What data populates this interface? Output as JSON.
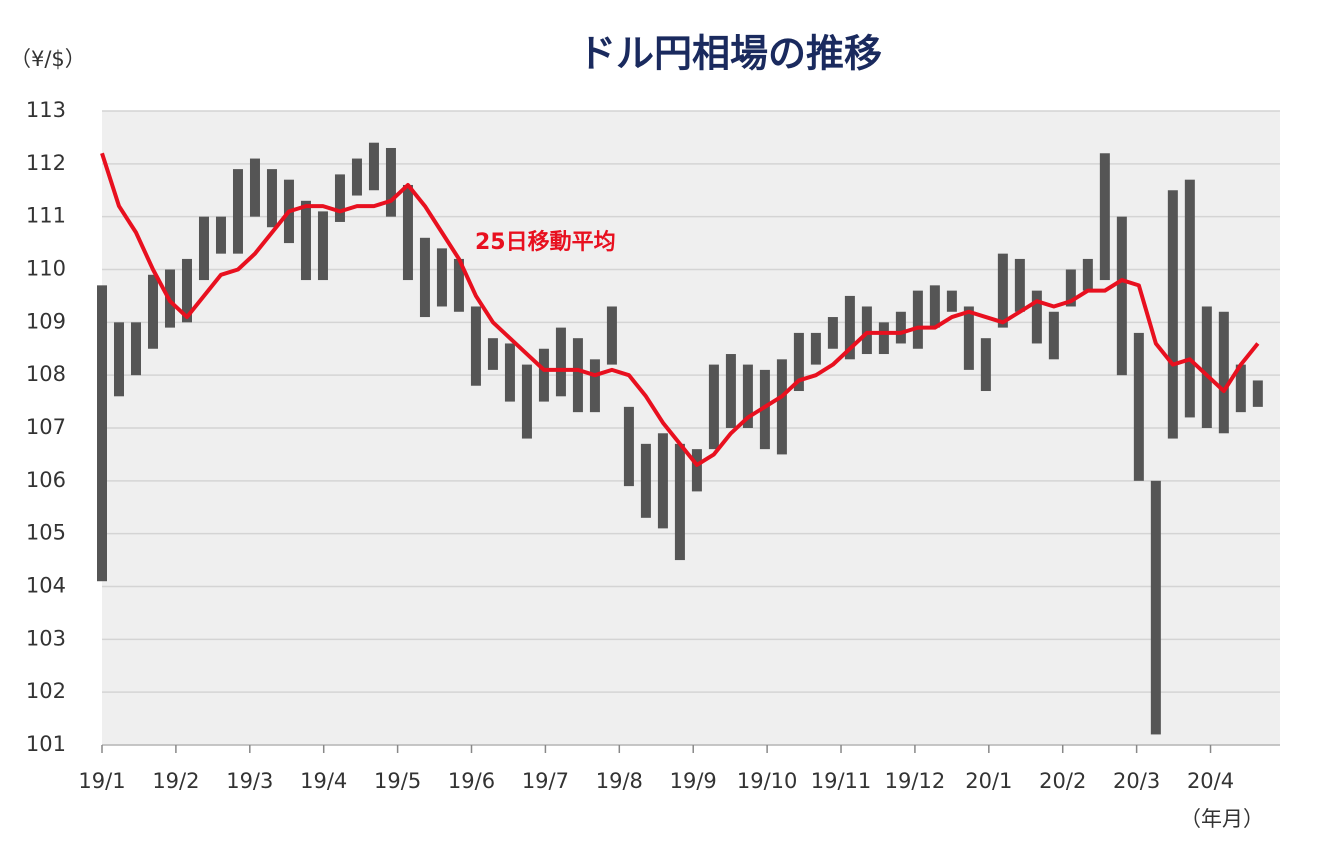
{
  "chart_data": {
    "type": "combo",
    "title": "ドル円相場の推移",
    "y_unit": "（¥/$）",
    "x_unit": "（年月）",
    "x": [
      0,
      0.23,
      0.46,
      0.69,
      0.92,
      1.15,
      1.38,
      1.61,
      1.84,
      2.07,
      2.3,
      2.53,
      2.76,
      2.99,
      3.22,
      3.45,
      3.68,
      3.91,
      4.14,
      4.37,
      4.6,
      4.83,
      5.06,
      5.29,
      5.52,
      5.75,
      5.98,
      6.21,
      6.44,
      6.67,
      6.9,
      7.13,
      7.36,
      7.59,
      7.82,
      8.05,
      8.28,
      8.51,
      8.74,
      8.97,
      9.2,
      9.43,
      9.66,
      9.89,
      10.12,
      10.35,
      10.58,
      10.81,
      11.04,
      11.27,
      11.5,
      11.73,
      11.96,
      12.19,
      12.42,
      12.65,
      12.88,
      13.11,
      13.34,
      13.57,
      13.8,
      14.03,
      14.26,
      14.49,
      14.72,
      14.95,
      15.18,
      15.41,
      15.64
    ],
    "series": [
      {
        "type": "range",
        "color": "#555555",
        "low": [
          104.1,
          107.6,
          108.0,
          108.5,
          108.9,
          109.0,
          109.8,
          110.3,
          110.3,
          111.0,
          110.8,
          110.5,
          109.8,
          109.8,
          110.9,
          111.4,
          111.5,
          111.0,
          109.8,
          109.1,
          109.3,
          109.2,
          107.8,
          108.1,
          107.5,
          106.8,
          107.5,
          107.6,
          107.3,
          107.3,
          108.2,
          105.9,
          105.3,
          105.1,
          104.5,
          105.8,
          106.6,
          107.0,
          107.0,
          106.6,
          106.5,
          107.7,
          108.2,
          108.5,
          108.3,
          108.4,
          108.4,
          108.6,
          108.5,
          108.9,
          109.2,
          108.1,
          107.7,
          108.9,
          109.2,
          108.6,
          108.3,
          109.3,
          109.6,
          109.8,
          108.0,
          106.0,
          101.2,
          106.8,
          107.2,
          107.0,
          106.9,
          107.3,
          107.4
        ],
        "high": [
          109.7,
          109.0,
          109.0,
          109.9,
          110.0,
          110.2,
          111.0,
          111.0,
          111.9,
          112.1,
          111.9,
          111.7,
          111.3,
          111.1,
          111.8,
          112.1,
          112.4,
          112.3,
          111.6,
          110.6,
          110.4,
          110.2,
          109.3,
          108.7,
          108.6,
          108.2,
          108.5,
          108.9,
          108.7,
          108.3,
          109.3,
          107.4,
          106.7,
          106.9,
          106.7,
          106.6,
          108.2,
          108.4,
          108.2,
          108.1,
          108.3,
          108.8,
          108.8,
          109.1,
          109.5,
          109.3,
          109.0,
          109.2,
          109.6,
          109.7,
          109.6,
          109.3,
          108.7,
          110.3,
          110.2,
          109.6,
          109.2,
          110.0,
          110.2,
          112.2,
          111.0,
          108.8,
          106.0,
          111.5,
          111.7,
          109.3,
          109.2,
          108.2,
          107.9
        ]
      },
      {
        "type": "line",
        "name": "25日移動平均",
        "color": "#e8101f",
        "values": [
          112.2,
          111.2,
          110.7,
          110.0,
          109.4,
          109.1,
          109.5,
          109.9,
          110.0,
          110.3,
          110.7,
          111.1,
          111.2,
          111.2,
          111.1,
          111.2,
          111.2,
          111.3,
          111.6,
          111.2,
          110.7,
          110.2,
          109.5,
          109.0,
          108.7,
          108.4,
          108.1,
          108.1,
          108.1,
          108.0,
          108.1,
          108.0,
          107.6,
          107.1,
          106.7,
          106.3,
          106.5,
          106.9,
          107.2,
          107.4,
          107.6,
          107.9,
          108.0,
          108.2,
          108.5,
          108.8,
          108.8,
          108.8,
          108.9,
          108.9,
          109.1,
          109.2,
          109.1,
          109.0,
          109.2,
          109.4,
          109.3,
          109.4,
          109.6,
          109.6,
          109.8,
          109.7,
          108.6,
          108.2,
          108.3,
          108.0,
          107.7,
          108.2,
          108.6
        ]
      }
    ],
    "xlim": [
      0,
      15.94
    ],
    "xticks": [
      {
        "value": 0,
        "label": "19/1"
      },
      {
        "value": 1,
        "label": "19/2"
      },
      {
        "value": 2,
        "label": "19/3"
      },
      {
        "value": 3,
        "label": "19/4"
      },
      {
        "value": 4,
        "label": "19/5"
      },
      {
        "value": 5,
        "label": "19/6"
      },
      {
        "value": 6,
        "label": "19/7"
      },
      {
        "value": 7,
        "label": "19/8"
      },
      {
        "value": 8,
        "label": "19/9"
      },
      {
        "value": 9,
        "label": "19/10"
      },
      {
        "value": 10,
        "label": "19/11"
      },
      {
        "value": 11,
        "label": "19/12"
      },
      {
        "value": 12,
        "label": "20/1"
      },
      {
        "value": 13,
        "label": "20/2"
      },
      {
        "value": 14,
        "label": "20/3"
      },
      {
        "value": 15,
        "label": "20/4"
      }
    ],
    "ylim": [
      101,
      113
    ],
    "yticks": [
      101,
      102,
      103,
      104,
      105,
      106,
      107,
      108,
      109,
      110,
      111,
      112,
      113
    ],
    "grid": true
  }
}
